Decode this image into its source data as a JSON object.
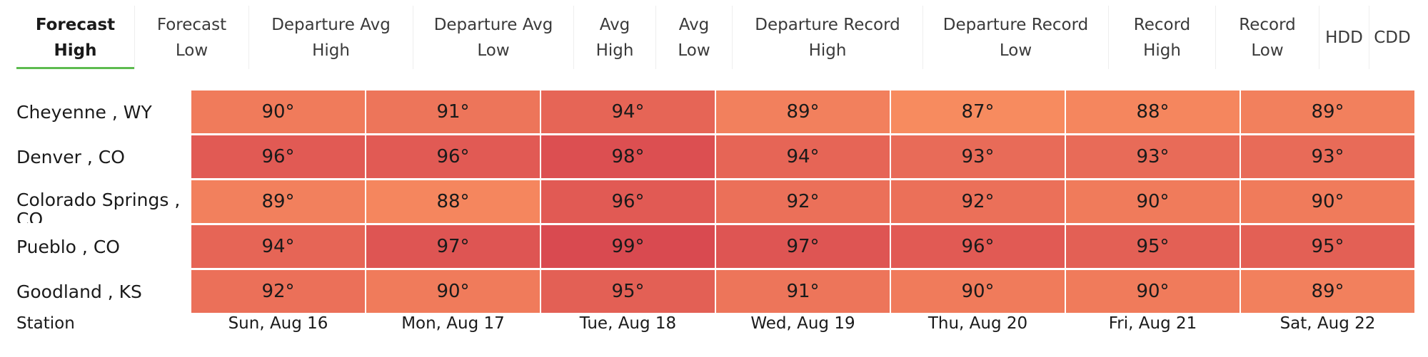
{
  "tabs": [
    {
      "label": "Forecast\nHigh",
      "active": true
    },
    {
      "label": "Forecast\nLow"
    },
    {
      "label": "Departure Avg\nHigh"
    },
    {
      "label": "Departure Avg\nLow"
    },
    {
      "label": "Avg\nHigh"
    },
    {
      "label": "Avg\nLow"
    },
    {
      "label": "Departure Record\nHigh"
    },
    {
      "label": "Departure Record\nLow"
    },
    {
      "label": "Record\nHigh"
    },
    {
      "label": "Record\nLow"
    },
    {
      "label": "HDD"
    },
    {
      "label": "CDD"
    }
  ],
  "chart_data": {
    "type": "heatmap",
    "title": "",
    "xlabel": "",
    "ylabel": "Station",
    "x": [
      "Sun, Aug 16",
      "Mon, Aug 17",
      "Tue, Aug 18",
      "Wed, Aug 19",
      "Thu, Aug 20",
      "Fri, Aug 21",
      "Sat, Aug 22"
    ],
    "y": [
      "Cheyenne , WY",
      "Denver , CO",
      "Colorado Springs , CO",
      "Pueblo , CO",
      "Goodland , KS"
    ],
    "values": [
      [
        90,
        91,
        94,
        89,
        87,
        88,
        89
      ],
      [
        96,
        96,
        98,
        94,
        93,
        93,
        93
      ],
      [
        89,
        88,
        96,
        92,
        92,
        90,
        90
      ],
      [
        94,
        97,
        99,
        97,
        96,
        95,
        95
      ],
      [
        92,
        90,
        95,
        91,
        90,
        90,
        89
      ]
    ],
    "unit": "°"
  }
}
